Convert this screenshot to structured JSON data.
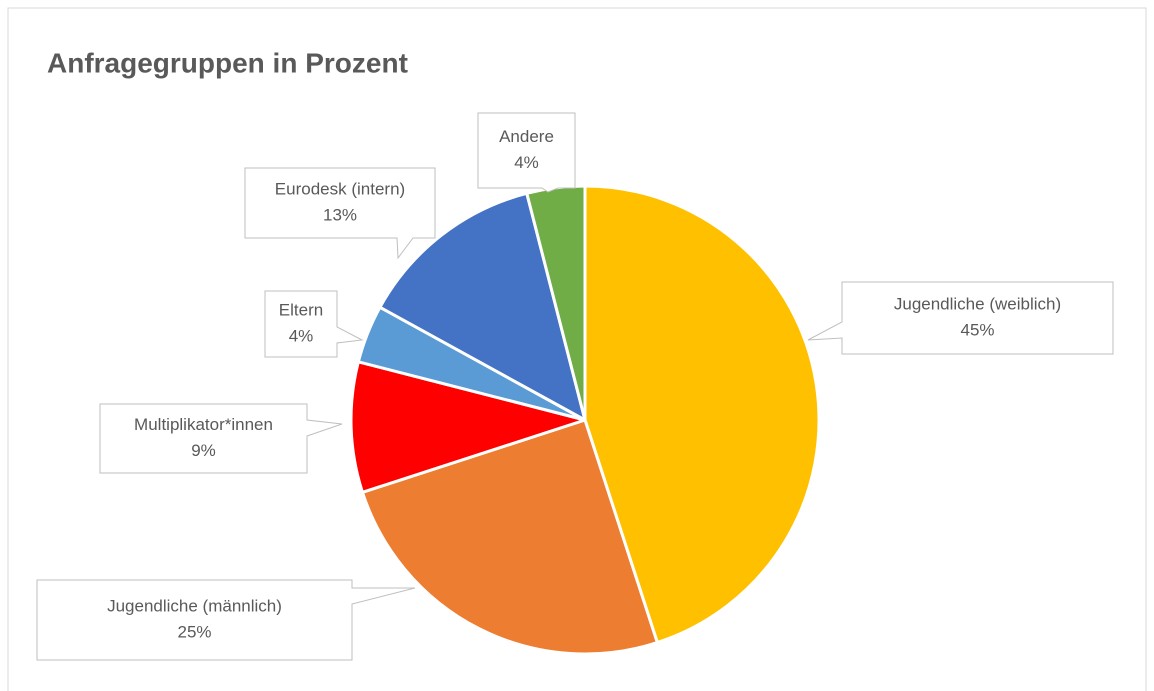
{
  "chart_data": {
    "type": "pie",
    "title": "Anfragegruppen in Prozent",
    "categories": [
      "Jugendliche (weiblich)",
      "Jugendliche (männlich)",
      "Multiplikator*innen",
      "Eltern",
      "Eurodesk (intern)",
      "Andere"
    ],
    "values": [
      45,
      25,
      9,
      4,
      13,
      4
    ],
    "value_labels": [
      "45%",
      "25%",
      "9%",
      "4%",
      "13%",
      "4%"
    ],
    "colors": [
      "#ffc000",
      "#ed7d31",
      "#ff0000",
      "#5b9bd5",
      "#4472c4",
      "#70ad47"
    ]
  }
}
